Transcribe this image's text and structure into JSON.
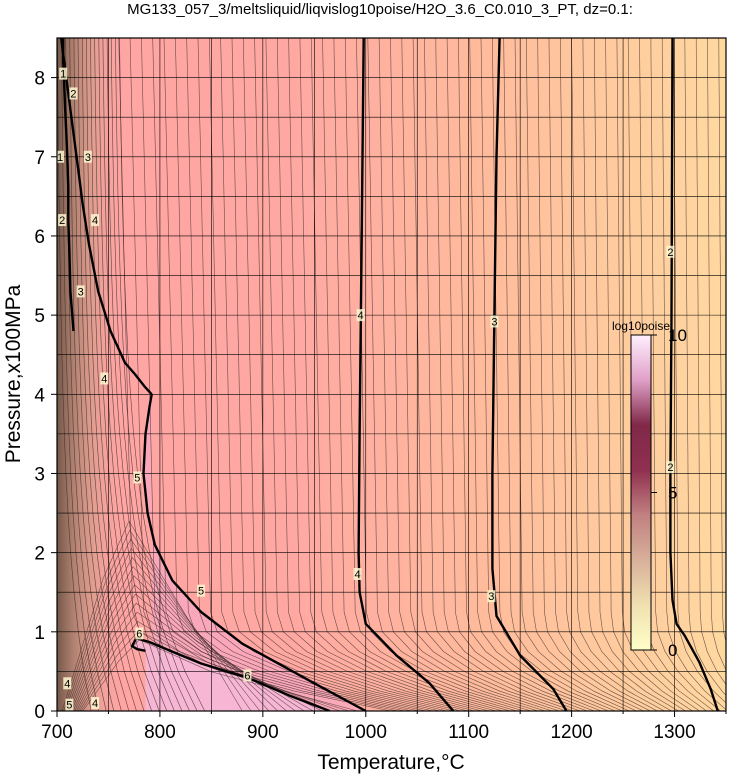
{
  "chart_data": {
    "type": "heatmap",
    "title": "MG133_057_3/meltsliquid/liqvislog10poise/H2O_3.6_C0.010_3_PT, dz=0.1:",
    "xlabel": "Temperature,°C",
    "ylabel": "Pressure,x100MPa",
    "xlim": [
      700,
      1350
    ],
    "ylim": [
      0,
      8.5
    ],
    "xticks": [
      700,
      800,
      900,
      1000,
      1100,
      1200,
      1300
    ],
    "yticks": [
      0,
      1,
      2,
      3,
      4,
      5,
      6,
      7,
      8
    ],
    "grid": true,
    "colorbar": {
      "label": "log10poise",
      "range": [
        0,
        10
      ],
      "ticks": [
        0,
        5,
        10
      ],
      "colors": [
        "#ffffc8",
        "#f0e0b0",
        "#d8b09a",
        "#c08080",
        "#903050",
        "#802848",
        "#e0a0c8",
        "#fff0ff"
      ]
    },
    "series": [
      {
        "name": "",
        "level": 2,
        "label": "2",
        "x": [
          1342,
          1335,
          1324,
          1310,
          1302,
          1298,
          1296,
          1296,
          1297,
          1298
        ],
        "y": [
          0,
          0.28,
          0.62,
          0.95,
          1.1,
          1.4,
          2.0,
          3.0,
          5.0,
          8.5
        ]
      },
      {
        "name": "",
        "level": 3,
        "label": "3",
        "x": [
          1195,
          1182,
          1150,
          1127,
          1123,
          1123,
          1124,
          1125,
          1127,
          1130
        ],
        "y": [
          0,
          0.28,
          0.7,
          1.2,
          1.8,
          3.0,
          4.0,
          5.0,
          7.0,
          8.5
        ]
      },
      {
        "name": "",
        "level": 4,
        "label": "4",
        "x": [
          1085,
          1062,
          1030,
          1000,
          994,
          993,
          994,
          996,
          998
        ],
        "y": [
          0,
          0.35,
          0.7,
          1.1,
          1.5,
          2.0,
          3.5,
          6.0,
          8.5
        ]
      },
      {
        "name": "",
        "level": 5,
        "label": "5",
        "x": [
          1000,
          950,
          880,
          840,
          812,
          795,
          788,
          784,
          786,
          790,
          792
        ],
        "y": [
          0,
          0.35,
          0.85,
          1.25,
          1.65,
          2.1,
          2.5,
          3.0,
          3.5,
          3.85,
          4.0
        ]
      },
      {
        "name": "",
        "level": 4,
        "label": "4",
        "x": [
          792,
          785,
          776,
          766,
          752,
          740,
          731,
          725,
          720,
          715,
          711,
          707,
          704
        ],
        "y": [
          4.0,
          4.1,
          4.25,
          4.4,
          4.8,
          5.3,
          5.9,
          6.4,
          6.9,
          7.4,
          7.8,
          8.2,
          8.5
        ]
      },
      {
        "name": "",
        "level": 6,
        "label": "6",
        "x": [
          965,
          925,
          885,
          840,
          812,
          790,
          777,
          773,
          778,
          786
        ],
        "y": [
          0,
          0.2,
          0.42,
          0.6,
          0.75,
          0.87,
          0.92,
          0.82,
          0.78,
          0.76
        ]
      },
      {
        "name": "",
        "level": 3,
        "label": "3",
        "x": [
          716,
          713,
          712,
          711,
          711,
          710,
          709,
          708,
          707,
          706,
          706
        ],
        "y": [
          4.8,
          5.3,
          5.8,
          6.2,
          6.6,
          7.0,
          7.3,
          7.6,
          7.9,
          8.2,
          8.5
        ]
      }
    ],
    "contour_labels": [
      {
        "text": "2",
        "x": 1296,
        "y": 5.8
      },
      {
        "text": "2",
        "x": 1296,
        "y": 3.08
      },
      {
        "text": "3",
        "x": 1125,
        "y": 4.92
      },
      {
        "text": "3",
        "x": 1122,
        "y": 1.45
      },
      {
        "text": "4",
        "x": 995,
        "y": 5.0
      },
      {
        "text": "4",
        "x": 992,
        "y": 1.73
      },
      {
        "text": "5",
        "x": 778,
        "y": 2.95
      },
      {
        "text": "5",
        "x": 840,
        "y": 1.52
      },
      {
        "text": "6",
        "x": 780,
        "y": 0.98
      },
      {
        "text": "6",
        "x": 885,
        "y": 0.45
      },
      {
        "text": "4",
        "x": 737,
        "y": 6.2
      },
      {
        "text": "4",
        "x": 746,
        "y": 4.2
      },
      {
        "text": "3",
        "x": 723,
        "y": 5.3
      },
      {
        "text": "3",
        "x": 730,
        "y": 7.0
      },
      {
        "text": "2",
        "x": 716,
        "y": 7.8
      },
      {
        "text": "2",
        "x": 705,
        "y": 6.2
      },
      {
        "text": "1",
        "x": 706,
        "y": 8.05
      },
      {
        "text": "1",
        "x": 703,
        "y": 7.0
      },
      {
        "text": "4",
        "x": 710,
        "y": 0.35
      },
      {
        "text": "5",
        "x": 712,
        "y": 0.08
      },
      {
        "text": "4",
        "x": 737,
        "y": 0.1
      }
    ]
  }
}
